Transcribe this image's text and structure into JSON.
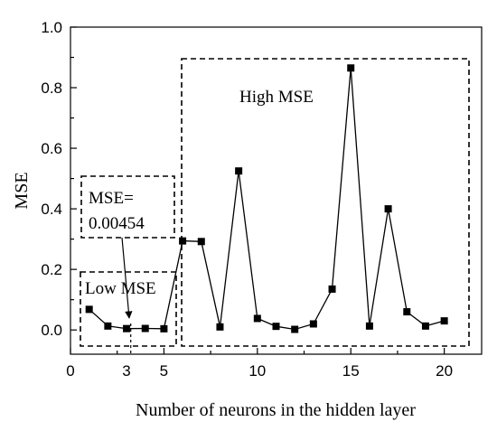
{
  "chart_data": {
    "type": "line",
    "xlabel": "Number of neurons in the hidden layer",
    "ylabel": "MSE",
    "xlim": [
      0,
      22
    ],
    "ylim": [
      -0.08,
      1.0
    ],
    "x_ticks": [
      0,
      5,
      10,
      15,
      20
    ],
    "y_ticks": [
      0.0,
      0.2,
      0.4,
      0.6,
      0.8,
      1.0
    ],
    "y_tick_labels": [
      "0.0",
      "0.2",
      "0.4",
      "0.6",
      "0.8",
      "1.0"
    ],
    "extra_x_tick": {
      "value": 3,
      "label": "3"
    },
    "grid": false,
    "series": [
      {
        "marker": "square",
        "color": "#000000",
        "x": [
          1,
          2,
          3,
          4,
          5,
          6,
          7,
          8,
          9,
          10,
          11,
          12,
          13,
          14,
          15,
          16,
          17,
          18,
          19,
          20
        ],
        "values": [
          0.068,
          0.013,
          0.00454,
          0.005,
          0.004,
          0.294,
          0.292,
          0.01,
          0.525,
          0.038,
          0.012,
          0.002,
          0.02,
          0.135,
          0.865,
          0.013,
          0.4,
          0.06,
          0.013,
          0.03
        ]
      }
    ],
    "annotations": {
      "high_mse": "High MSE",
      "low_mse": "Low MSE",
      "callout_line1": "MSE=",
      "callout_line2": "0.00454"
    }
  }
}
